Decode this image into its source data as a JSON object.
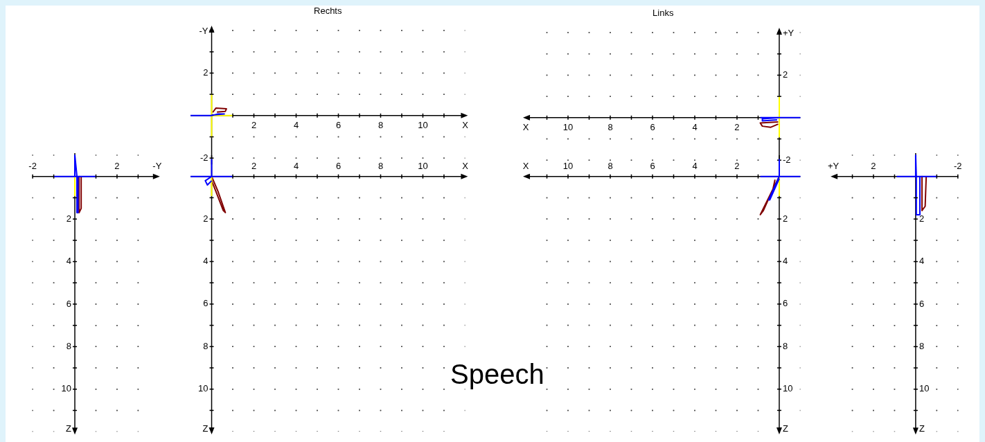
{
  "chart_data": [
    {
      "type": "line",
      "xlabel": "-Y",
      "ylabel": "Z",
      "xlim": [
        -2,
        3.9
      ],
      "ylim": [
        12,
        -1.1
      ],
      "grid": true,
      "xticks": [
        -2,
        {
          "value": -1,
          "label": null
        },
        {
          "value": 1,
          "label": null
        },
        2,
        {
          "value": 3,
          "label": null
        }
      ],
      "yticks": [
        {
          "value": 1,
          "label": null
        },
        2,
        {
          "value": 3,
          "label": null
        },
        4,
        {
          "value": 5,
          "label": null
        },
        6,
        {
          "value": 7,
          "label": null
        },
        8,
        {
          "value": 9,
          "label": null
        },
        10,
        {
          "value": 11,
          "label": null
        }
      ],
      "series": [
        {
          "color": "#0000ff",
          "x": [
            -1,
            1,
            0,
            0,
            0.1,
            0.1,
            0.15,
            0.15
          ],
          "values": [
            0,
            0,
            0,
            -1,
            0,
            1.7,
            1.7,
            0
          ]
        },
        {
          "color": "#ffff00",
          "x": [
            0,
            0
          ],
          "values": [
            0,
            0.9
          ]
        },
        {
          "color": "#800000",
          "x": [
            0.2,
            0.2,
            0.3,
            0.3,
            0.3
          ],
          "values": [
            0,
            1.7,
            1.5,
            0.3,
            0
          ]
        }
      ]
    },
    {
      "type": "line",
      "title": "Rechts",
      "xlabel": "X",
      "ylabel": "-Y",
      "xlim": [
        -1,
        12
      ],
      "ylim": [
        -2.3,
        4.1
      ],
      "grid": true,
      "xticks": [
        {
          "value": 1,
          "label": null
        },
        2,
        {
          "value": 3,
          "label": null
        },
        4,
        {
          "value": 5,
          "label": null
        },
        6,
        {
          "value": 7,
          "label": null
        },
        8,
        {
          "value": 9,
          "label": null
        },
        10,
        {
          "value": 11,
          "label": null
        }
      ],
      "yticks": [
        -2,
        {
          "value": -1,
          "label": null
        },
        {
          "value": 1,
          "label": null
        },
        2,
        {
          "value": 3,
          "label": null
        },
        {
          "value": 4,
          "label": null
        }
      ],
      "series": [
        {
          "color": "#0000ff",
          "x": [
            -1,
            0,
            0.3,
            0.6,
            0
          ],
          "values": [
            0,
            0,
            0.08,
            0.08,
            0.03
          ]
        },
        {
          "color": "#ffff00",
          "x": [
            0,
            0,
            0,
            1
          ],
          "values": [
            1,
            -1,
            0,
            0
          ]
        },
        {
          "color": "#800000",
          "x": [
            0.05,
            0.2,
            0.7,
            0.65,
            0.25
          ],
          "values": [
            0.15,
            0.35,
            0.32,
            0.2,
            0.17
          ]
        }
      ]
    },
    {
      "type": "line",
      "xlabel": "X",
      "ylabel": "Z",
      "xlim": [
        -1,
        12
      ],
      "ylim": [
        12,
        -1
      ],
      "grid": true,
      "annotations": [
        "Speech"
      ],
      "xticks": [
        {
          "value": 1,
          "label": null
        },
        2,
        {
          "value": 3,
          "label": null
        },
        4,
        {
          "value": 5,
          "label": null
        },
        6,
        {
          "value": 7,
          "label": null
        },
        8,
        {
          "value": 9,
          "label": null
        },
        10,
        {
          "value": 11,
          "label": null
        }
      ],
      "yticks": [
        {
          "value": 1,
          "label": null
        },
        2,
        {
          "value": 3,
          "label": null
        },
        4,
        {
          "value": 5,
          "label": null
        },
        6,
        {
          "value": 7,
          "label": null
        },
        8,
        {
          "value": 9,
          "label": null
        },
        10,
        {
          "value": 11,
          "label": null
        }
      ],
      "series": [
        {
          "color": "#0000ff",
          "x": [
            -1,
            1,
            0,
            0,
            0,
            -0.3,
            -0.2,
            0
          ],
          "values": [
            0,
            0,
            0,
            -0.8,
            0,
            0.2,
            0.4,
            0.2
          ]
        },
        {
          "color": "#ffff00",
          "x": [
            0,
            0
          ],
          "values": [
            0,
            0.9
          ]
        },
        {
          "color": "#800000",
          "x": [
            0,
            0.3,
            0.65,
            0.55,
            0.2,
            0
          ],
          "values": [
            0,
            0.7,
            1.7,
            1.6,
            0.7,
            0.2
          ]
        }
      ]
    },
    {
      "type": "line",
      "title": "Links",
      "xlabel": "X",
      "ylabel": "+Y",
      "xlim": [
        12,
        -1
      ],
      "ylim": [
        -2.3,
        4.1
      ],
      "grid": true,
      "xticks": [
        {
          "value": 1,
          "label": null
        },
        2,
        {
          "value": 3,
          "label": null
        },
        4,
        {
          "value": 5,
          "label": null
        },
        6,
        {
          "value": 7,
          "label": null
        },
        8,
        {
          "value": 9,
          "label": null
        },
        10,
        {
          "value": 11,
          "label": null
        }
      ],
      "yticks": [
        -2,
        {
          "value": -1,
          "label": null
        },
        {
          "value": 1,
          "label": null
        },
        2,
        {
          "value": 3,
          "label": null
        },
        {
          "value": 4,
          "label": null
        }
      ],
      "series": [
        {
          "color": "#0000ff",
          "x": [
            0.9,
            -1,
            0,
            0.8,
            0.8,
            0.1
          ],
          "values": [
            0,
            0,
            0,
            -0.05,
            -0.15,
            -0.1
          ]
        },
        {
          "color": "#ffff00",
          "x": [
            0,
            0
          ],
          "values": [
            1,
            -0.9
          ]
        },
        {
          "color": "#800000",
          "x": [
            0.05,
            0.9,
            0.8,
            0.4,
            0.05
          ],
          "values": [
            -0.2,
            -0.25,
            -0.4,
            -0.45,
            -0.3
          ]
        }
      ]
    },
    {
      "type": "line",
      "xlabel": "X",
      "ylabel": "Z",
      "xlim": [
        12,
        -1
      ],
      "ylim": [
        12,
        -1
      ],
      "grid": true,
      "xticks": [
        {
          "value": 1,
          "label": null
        },
        2,
        {
          "value": 3,
          "label": null
        },
        4,
        {
          "value": 5,
          "label": null
        },
        6,
        {
          "value": 7,
          "label": null
        },
        8,
        {
          "value": 9,
          "label": null
        },
        10,
        {
          "value": 11,
          "label": null
        }
      ],
      "yticks": [
        {
          "value": 1,
          "label": null
        },
        2,
        {
          "value": 3,
          "label": null
        },
        4,
        {
          "value": 5,
          "label": null
        },
        6,
        {
          "value": 7,
          "label": null
        },
        8,
        {
          "value": 9,
          "label": null
        },
        10,
        {
          "value": 11,
          "label": null
        }
      ],
      "series": [
        {
          "color": "#0000ff",
          "x": [
            0.9,
            -1,
            0,
            0,
            0,
            0.5,
            0.45,
            0
          ],
          "values": [
            0,
            0,
            0,
            -0.8,
            0,
            1.1,
            1.1,
            0.1
          ]
        },
        {
          "color": "#ffff00",
          "x": [
            0,
            0
          ],
          "values": [
            0,
            0.9
          ]
        },
        {
          "color": "#800000",
          "x": [
            0,
            0.4,
            0.9,
            0.75,
            0.3,
            0.2
          ],
          "values": [
            0,
            0.8,
            1.8,
            1.6,
            0.6,
            0.15
          ]
        }
      ]
    },
    {
      "type": "line",
      "xlabel": "+Y",
      "ylabel": "Z",
      "xlim": [
        3.9,
        -2
      ],
      "ylim": [
        12,
        -1.1
      ],
      "grid": true,
      "xticks": [
        {
          "value": 3,
          "label": null
        },
        2,
        {
          "value": 1,
          "label": null
        },
        {
          "value": -1,
          "label": null
        },
        -2
      ],
      "yticks": [
        {
          "value": 1,
          "label": null
        },
        2,
        {
          "value": 3,
          "label": null
        },
        4,
        {
          "value": 5,
          "label": null
        },
        6,
        {
          "value": 7,
          "label": null
        },
        8,
        {
          "value": 9,
          "label": null
        },
        10,
        {
          "value": 11,
          "label": null
        }
      ],
      "series": [
        {
          "color": "#0000ff",
          "x": [
            0.9,
            -1,
            0,
            0,
            -0.03,
            -0.03,
            -0.2,
            -0.2
          ],
          "values": [
            0,
            0,
            0,
            -1,
            0,
            1.8,
            1.8,
            0
          ]
        },
        {
          "color": "#800000",
          "x": [
            -0.3,
            -0.3,
            -0.45,
            -0.5
          ],
          "values": [
            0,
            1.6,
            1.4,
            0
          ]
        }
      ]
    }
  ]
}
